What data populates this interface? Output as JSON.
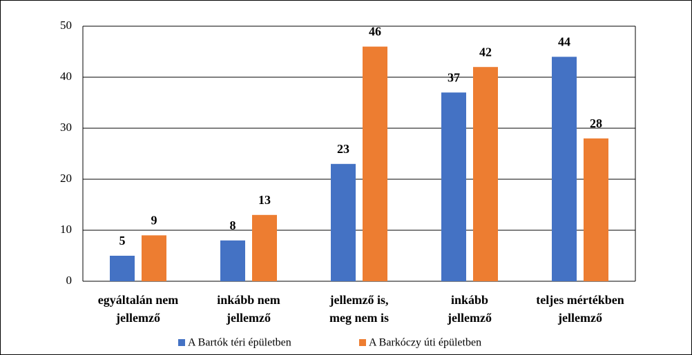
{
  "chart_data": {
    "type": "bar",
    "categories": [
      [
        "egyáltalán nem",
        "jellemző"
      ],
      [
        "inkább nem",
        "jellemző"
      ],
      [
        "jellemző is,",
        "meg nem is"
      ],
      [
        "inkább",
        "jellemző"
      ],
      [
        "teljes mértékben",
        "jellemző"
      ]
    ],
    "series": [
      {
        "name": "A Bartók téri épületben",
        "color": "#4472c4",
        "values": [
          5,
          8,
          23,
          37,
          44
        ]
      },
      {
        "name": "A Barkóczy úti épületben",
        "color": "#ed7d31",
        "values": [
          9,
          13,
          46,
          42,
          28
        ]
      }
    ],
    "ylim": [
      0,
      50
    ],
    "yticks": [
      0,
      10,
      20,
      30,
      40,
      50
    ],
    "grid": true,
    "legend": "bottom"
  }
}
